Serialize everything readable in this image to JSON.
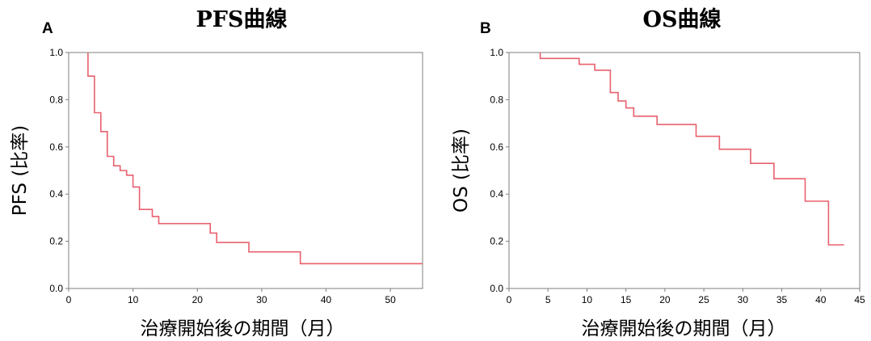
{
  "colors": {
    "curve": "#e8606e",
    "frame": "#7f7f7f"
  },
  "chart_data": [
    {
      "panel": "A",
      "type": "line",
      "step": true,
      "title": "PFS曲線",
      "xlabel": "治療開始後の期間（月）",
      "ylabel": "PFS (比率)",
      "xlim": [
        0,
        55
      ],
      "ylim": [
        0,
        1
      ],
      "xticks": [
        "0",
        "10",
        "20",
        "30",
        "40",
        "50"
      ],
      "yticks": [
        "0.0",
        "0.2",
        "0.4",
        "0.6",
        "0.8",
        "1.0"
      ],
      "grid": false,
      "series": [
        {
          "x": [
            3,
            3,
            4,
            4,
            5,
            5,
            6,
            6,
            7,
            7,
            8,
            8,
            9,
            9,
            10,
            10,
            11,
            11,
            13,
            13,
            14,
            14,
            22,
            22,
            23,
            23,
            28,
            28,
            36,
            36,
            55
          ],
          "y": [
            1.0,
            0.9,
            0.9,
            0.745,
            0.745,
            0.665,
            0.665,
            0.56,
            0.56,
            0.52,
            0.52,
            0.5,
            0.5,
            0.48,
            0.48,
            0.43,
            0.43,
            0.335,
            0.335,
            0.305,
            0.305,
            0.275,
            0.275,
            0.235,
            0.235,
            0.195,
            0.195,
            0.155,
            0.155,
            0.105,
            0.105
          ]
        }
      ]
    },
    {
      "panel": "B",
      "type": "line",
      "step": true,
      "title": "OS曲線",
      "xlabel": "治療開始後の期間（月）",
      "ylabel": "OS (比率)",
      "xlim": [
        0,
        45
      ],
      "ylim": [
        0,
        1
      ],
      "xticks": [
        "0",
        "5",
        "10",
        "15",
        "20",
        "25",
        "30",
        "35",
        "40",
        "45"
      ],
      "yticks": [
        "0.0",
        "0.2",
        "0.4",
        "0.6",
        "0.8",
        "1.0"
      ],
      "grid": false,
      "series": [
        {
          "x": [
            4,
            4,
            9,
            9,
            11,
            11,
            13,
            13,
            14,
            14,
            15,
            15,
            16,
            16,
            19,
            19,
            24,
            24,
            27,
            27,
            31,
            31,
            34,
            34,
            38,
            38,
            41,
            41,
            43
          ],
          "y": [
            1.0,
            0.975,
            0.975,
            0.95,
            0.95,
            0.925,
            0.925,
            0.83,
            0.83,
            0.795,
            0.795,
            0.765,
            0.765,
            0.73,
            0.73,
            0.695,
            0.695,
            0.645,
            0.645,
            0.59,
            0.59,
            0.53,
            0.53,
            0.465,
            0.465,
            0.37,
            0.37,
            0.185,
            0.185
          ]
        }
      ]
    }
  ]
}
